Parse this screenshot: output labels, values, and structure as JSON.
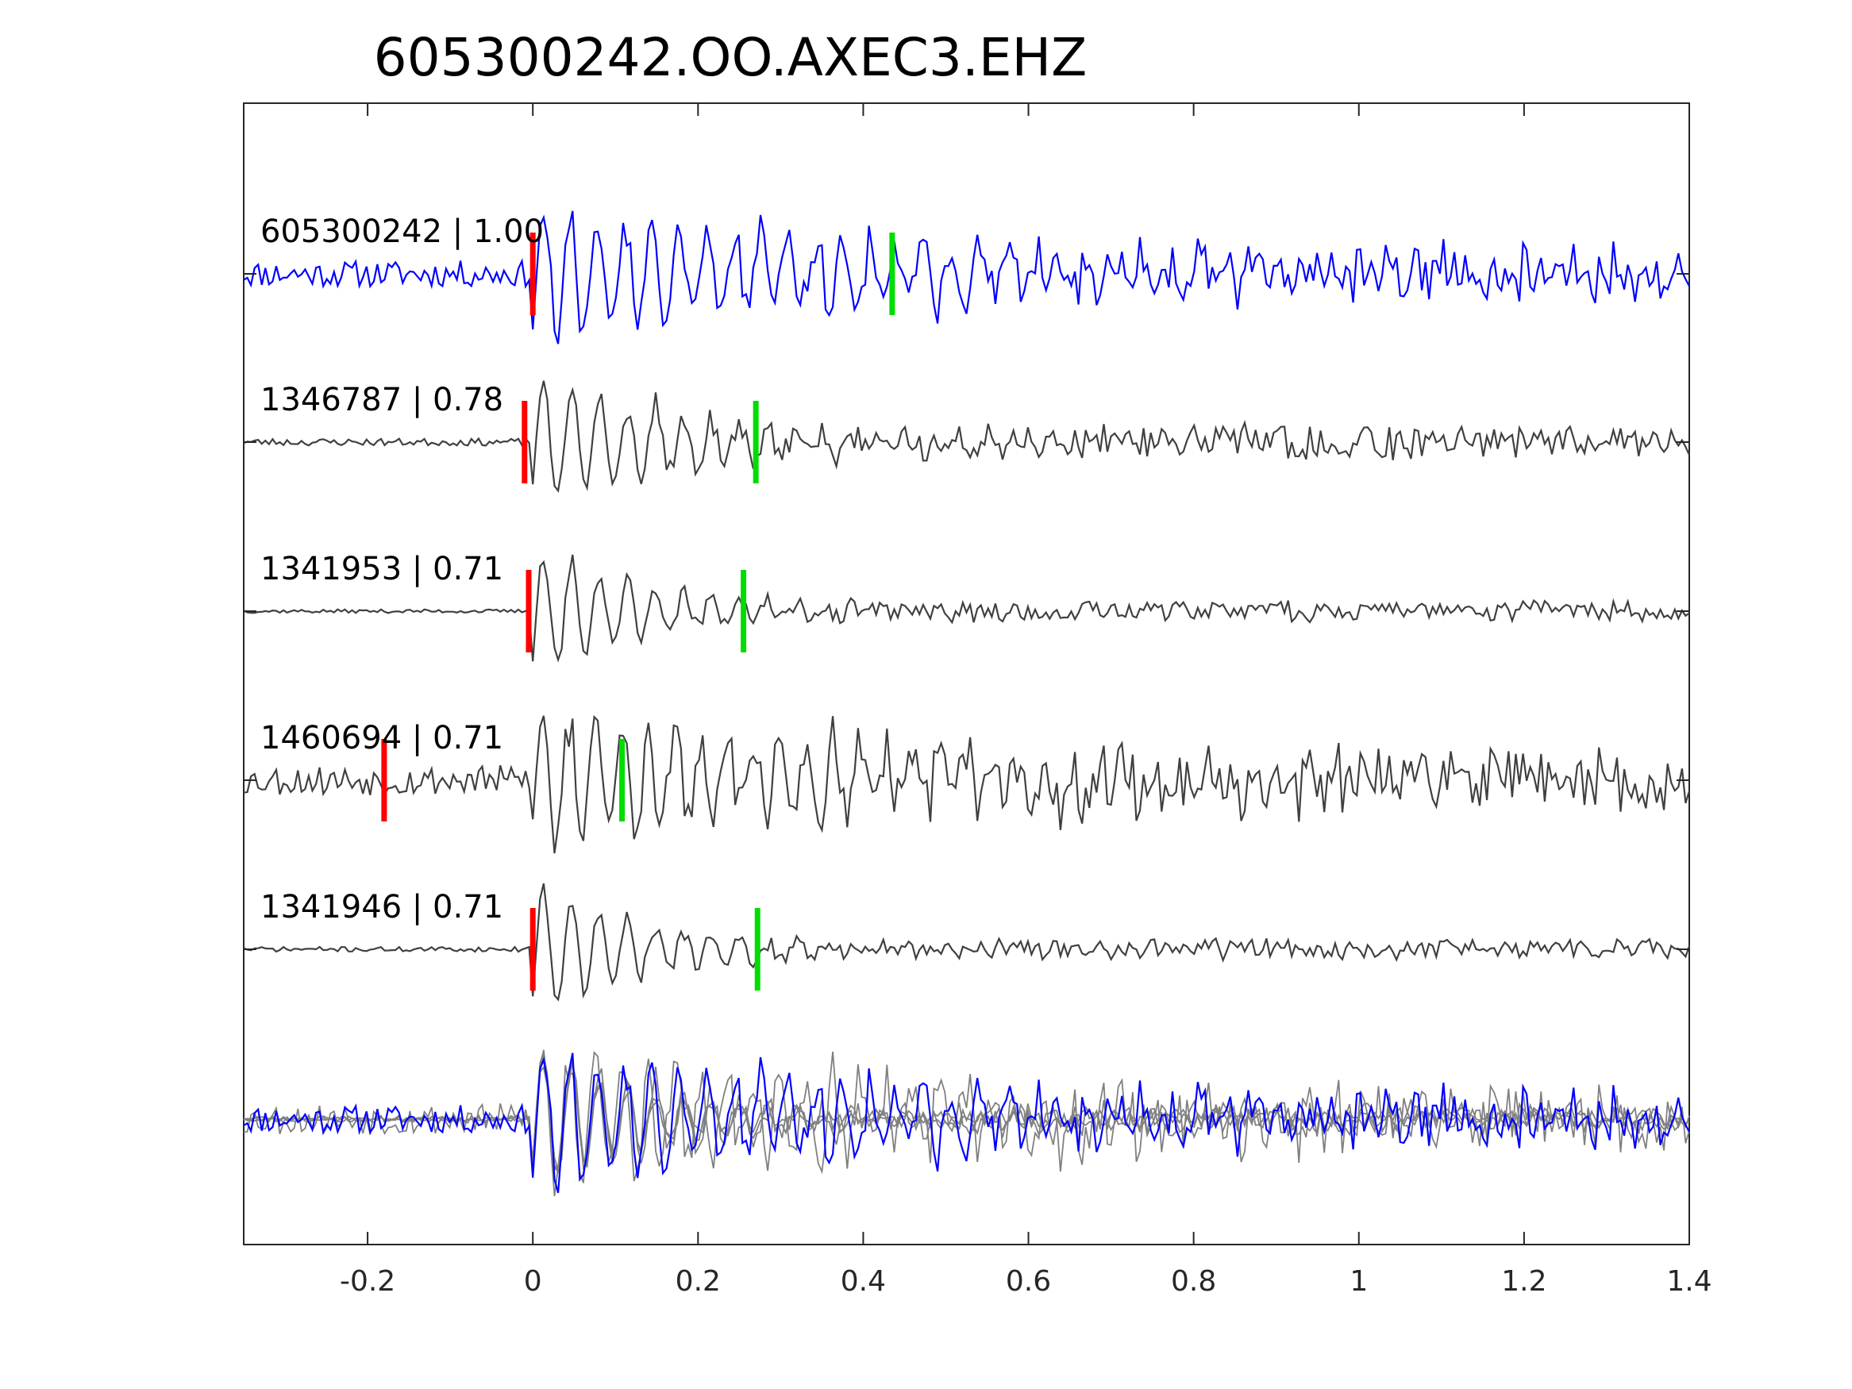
{
  "chart_data": {
    "type": "line",
    "title": "605300242.OO.AXEC3.EHZ",
    "xlabel": "",
    "ylabel": "",
    "xlim": [
      -0.35,
      1.4
    ],
    "xticks": [
      -0.2,
      0,
      0.2,
      0.4,
      0.6,
      0.8,
      1,
      1.2,
      1.4
    ],
    "xtick_labels": [
      "-0.2",
      "0",
      "0.2",
      "0.4",
      "0.6",
      "0.8",
      "1",
      "1.2",
      "1.4"
    ],
    "grid": false,
    "colors": {
      "reference_trace": "#0000ff",
      "matched_trace": "#404040",
      "stack_trace": "#808080",
      "p_pick": "#ff0000",
      "s_pick": "#00dd00",
      "axes": "#262626"
    },
    "series": [
      {
        "name": "605300242",
        "label": "605300242 | 1.00",
        "correlation": 1.0,
        "p_pick": 0.0,
        "s_pick": 0.435,
        "onset": 0.0,
        "amplitude": 1.0,
        "period": 0.033,
        "pre_noise": 0.22,
        "coda": 0.42,
        "decay": 1.1,
        "seed": 11
      },
      {
        "name": "1346787",
        "label": "1346787 | 0.78",
        "correlation": 0.78,
        "p_pick": -0.01,
        "s_pick": 0.27,
        "onset": 0.0,
        "amplitude": 1.0,
        "period": 0.034,
        "pre_noise": 0.06,
        "coda": 0.3,
        "decay": 2.2,
        "seed": 23
      },
      {
        "name": "1341953",
        "label": "1341953 | 0.71",
        "correlation": 0.71,
        "p_pick": -0.005,
        "s_pick": 0.255,
        "onset": 0.0,
        "amplitude": 1.0,
        "period": 0.034,
        "pre_noise": 0.03,
        "coda": 0.18,
        "decay": 3.0,
        "seed": 37
      },
      {
        "name": "1460694",
        "label": "1460694 | 0.71",
        "correlation": 0.71,
        "p_pick": -0.18,
        "s_pick": 0.108,
        "onset": 0.0,
        "amplitude": 1.0,
        "period": 0.032,
        "pre_noise": 0.25,
        "coda": 0.5,
        "decay": 0.9,
        "seed": 53
      },
      {
        "name": "1341946",
        "label": "1341946 | 0.71",
        "correlation": 0.71,
        "p_pick": 0.0,
        "s_pick": 0.272,
        "onset": 0.0,
        "amplitude": 1.0,
        "period": 0.034,
        "pre_noise": 0.04,
        "coda": 0.17,
        "decay": 3.2,
        "seed": 71
      }
    ],
    "stack": {
      "name": "overlay",
      "includes": [
        "605300242",
        "1346787",
        "1341953",
        "1460694",
        "1341946"
      ]
    }
  }
}
